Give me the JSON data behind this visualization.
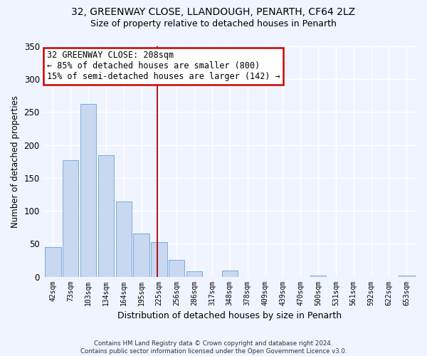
{
  "title1": "32, GREENWAY CLOSE, LLANDOUGH, PENARTH, CF64 2LZ",
  "title2": "Size of property relative to detached houses in Penarth",
  "xlabel": "Distribution of detached houses by size in Penarth",
  "ylabel": "Number of detached properties",
  "bar_labels": [
    "42sqm",
    "73sqm",
    "103sqm",
    "134sqm",
    "164sqm",
    "195sqm",
    "225sqm",
    "256sqm",
    "286sqm",
    "317sqm",
    "348sqm",
    "378sqm",
    "409sqm",
    "439sqm",
    "470sqm",
    "500sqm",
    "531sqm",
    "561sqm",
    "592sqm",
    "622sqm",
    "653sqm"
  ],
  "bar_values": [
    45,
    177,
    262,
    184,
    114,
    65,
    53,
    25,
    8,
    0,
    9,
    0,
    0,
    0,
    0,
    2,
    0,
    0,
    0,
    0,
    2
  ],
  "bar_color": "#c8d8f0",
  "bar_edge_color": "#7aaddd",
  "ylim": [
    0,
    350
  ],
  "yticks": [
    0,
    50,
    100,
    150,
    200,
    250,
    300,
    350
  ],
  "annotation_title": "32 GREENWAY CLOSE: 208sqm",
  "annotation_line1": "← 85% of detached houses are smaller (800)",
  "annotation_line2": "15% of semi-detached houses are larger (142) →",
  "annotation_box_color": "#ffffff",
  "annotation_box_edge": "#cc0000",
  "vline_color": "#aa0000",
  "footer1": "Contains HM Land Registry data © Crown copyright and database right 2024.",
  "footer2": "Contains public sector information licensed under the Open Government Licence v3.0.",
  "background_color": "#f0f4ff",
  "grid_color": "#ffffff",
  "title_fontsize": 10,
  "subtitle_fontsize": 9
}
